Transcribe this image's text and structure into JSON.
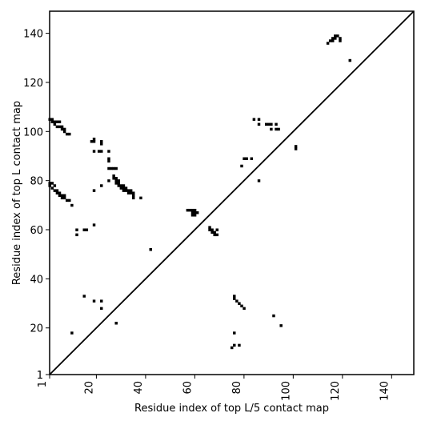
{
  "chart_data": {
    "type": "heatmap",
    "title": "",
    "xlabel": "Residue index of top L/5 contact map",
    "ylabel": "Residue index of top L contact map",
    "xlim": [
      1,
      149
    ],
    "ylim": [
      1,
      149
    ],
    "x_ticks": [
      1,
      20,
      40,
      60,
      80,
      100,
      120,
      140
    ],
    "y_ticks": [
      1,
      20,
      40,
      60,
      80,
      100,
      120,
      140
    ],
    "x_tick_labels": [
      "1",
      "20",
      "40",
      "60",
      "80",
      "100",
      "120",
      "140"
    ],
    "y_tick_labels": [
      "1",
      "20",
      "40",
      "60",
      "80",
      "100",
      "120",
      "140"
    ],
    "diagonal": true,
    "grid": false,
    "cell_color": "#000000",
    "lower_triangle_contacts": [
      [
        10,
        18
      ],
      [
        12,
        58
      ],
      [
        12,
        60
      ],
      [
        15,
        60
      ],
      [
        16,
        60
      ],
      [
        15,
        33
      ],
      [
        19,
        31
      ],
      [
        22,
        31
      ],
      [
        22,
        28
      ],
      [
        28,
        22
      ],
      [
        42,
        52
      ],
      [
        76,
        18
      ],
      [
        75,
        12
      ],
      [
        76,
        13
      ],
      [
        78,
        13
      ],
      [
        76,
        32
      ],
      [
        76,
        33
      ],
      [
        77,
        31
      ],
      [
        78,
        30
      ],
      [
        79,
        29
      ],
      [
        80,
        28
      ],
      [
        92,
        25
      ],
      [
        95,
        21
      ],
      [
        57,
        68
      ],
      [
        58,
        68
      ],
      [
        59,
        68
      ],
      [
        60,
        68
      ],
      [
        59,
        67
      ],
      [
        60,
        67
      ],
      [
        59,
        66
      ],
      [
        60,
        66
      ],
      [
        61,
        67
      ],
      [
        66,
        60
      ],
      [
        67,
        60
      ],
      [
        67,
        59
      ],
      [
        68,
        59
      ],
      [
        68,
        58
      ],
      [
        69,
        58
      ],
      [
        69,
        60
      ],
      [
        66,
        61
      ],
      [
        79,
        86
      ],
      [
        81,
        89
      ],
      [
        83,
        89
      ],
      [
        80,
        89
      ],
      [
        84,
        105
      ],
      [
        86,
        105
      ],
      [
        86,
        103
      ],
      [
        86,
        80
      ],
      [
        89,
        103
      ],
      [
        90,
        103
      ],
      [
        91,
        103
      ],
      [
        91,
        101
      ],
      [
        93,
        103
      ],
      [
        93,
        101
      ],
      [
        94,
        101
      ],
      [
        101,
        93
      ],
      [
        101,
        94
      ],
      [
        114,
        136
      ],
      [
        115,
        137
      ],
      [
        116,
        137
      ],
      [
        116,
        138
      ],
      [
        117,
        138
      ],
      [
        117,
        139
      ],
      [
        118,
        139
      ],
      [
        119,
        138
      ],
      [
        119,
        137
      ],
      [
        123,
        129
      ]
    ],
    "upper_triangle_contacts": [
      [
        1,
        105
      ],
      [
        2,
        105
      ],
      [
        2,
        104
      ],
      [
        3,
        104
      ],
      [
        3,
        103
      ],
      [
        4,
        104
      ],
      [
        4,
        102
      ],
      [
        5,
        104
      ],
      [
        5,
        102
      ],
      [
        6,
        102
      ],
      [
        6,
        101
      ],
      [
        7,
        101
      ],
      [
        7,
        100
      ],
      [
        8,
        99
      ],
      [
        9,
        99
      ],
      [
        1,
        79
      ],
      [
        1,
        78
      ],
      [
        2,
        79
      ],
      [
        2,
        77
      ],
      [
        3,
        78
      ],
      [
        3,
        76
      ],
      [
        4,
        76
      ],
      [
        4,
        75
      ],
      [
        5,
        75
      ],
      [
        5,
        74
      ],
      [
        6,
        74
      ],
      [
        6,
        73
      ],
      [
        7,
        74
      ],
      [
        7,
        73
      ],
      [
        8,
        72
      ],
      [
        9,
        72
      ],
      [
        10,
        70
      ],
      [
        18,
        96
      ],
      [
        19,
        96
      ],
      [
        19,
        97
      ],
      [
        22,
        96
      ],
      [
        22,
        95
      ],
      [
        21,
        92
      ],
      [
        22,
        92
      ],
      [
        19,
        92
      ],
      [
        25,
        92
      ],
      [
        25,
        89
      ],
      [
        25,
        88
      ],
      [
        25,
        85
      ],
      [
        26,
        85
      ],
      [
        27,
        85
      ],
      [
        28,
        85
      ],
      [
        19,
        76
      ],
      [
        22,
        78
      ],
      [
        25,
        80
      ],
      [
        27,
        82
      ],
      [
        27,
        81
      ],
      [
        28,
        81
      ],
      [
        28,
        80
      ],
      [
        29,
        80
      ],
      [
        28,
        79
      ],
      [
        29,
        79
      ],
      [
        29,
        78
      ],
      [
        30,
        78
      ],
      [
        30,
        77
      ],
      [
        31,
        78
      ],
      [
        31,
        77
      ],
      [
        31,
        76
      ],
      [
        32,
        77
      ],
      [
        32,
        76
      ],
      [
        33,
        76
      ],
      [
        33,
        75
      ],
      [
        34,
        76
      ],
      [
        34,
        75
      ],
      [
        35,
        75
      ],
      [
        35,
        74
      ],
      [
        35,
        73
      ],
      [
        38,
        73
      ],
      [
        19,
        62
      ]
    ]
  }
}
